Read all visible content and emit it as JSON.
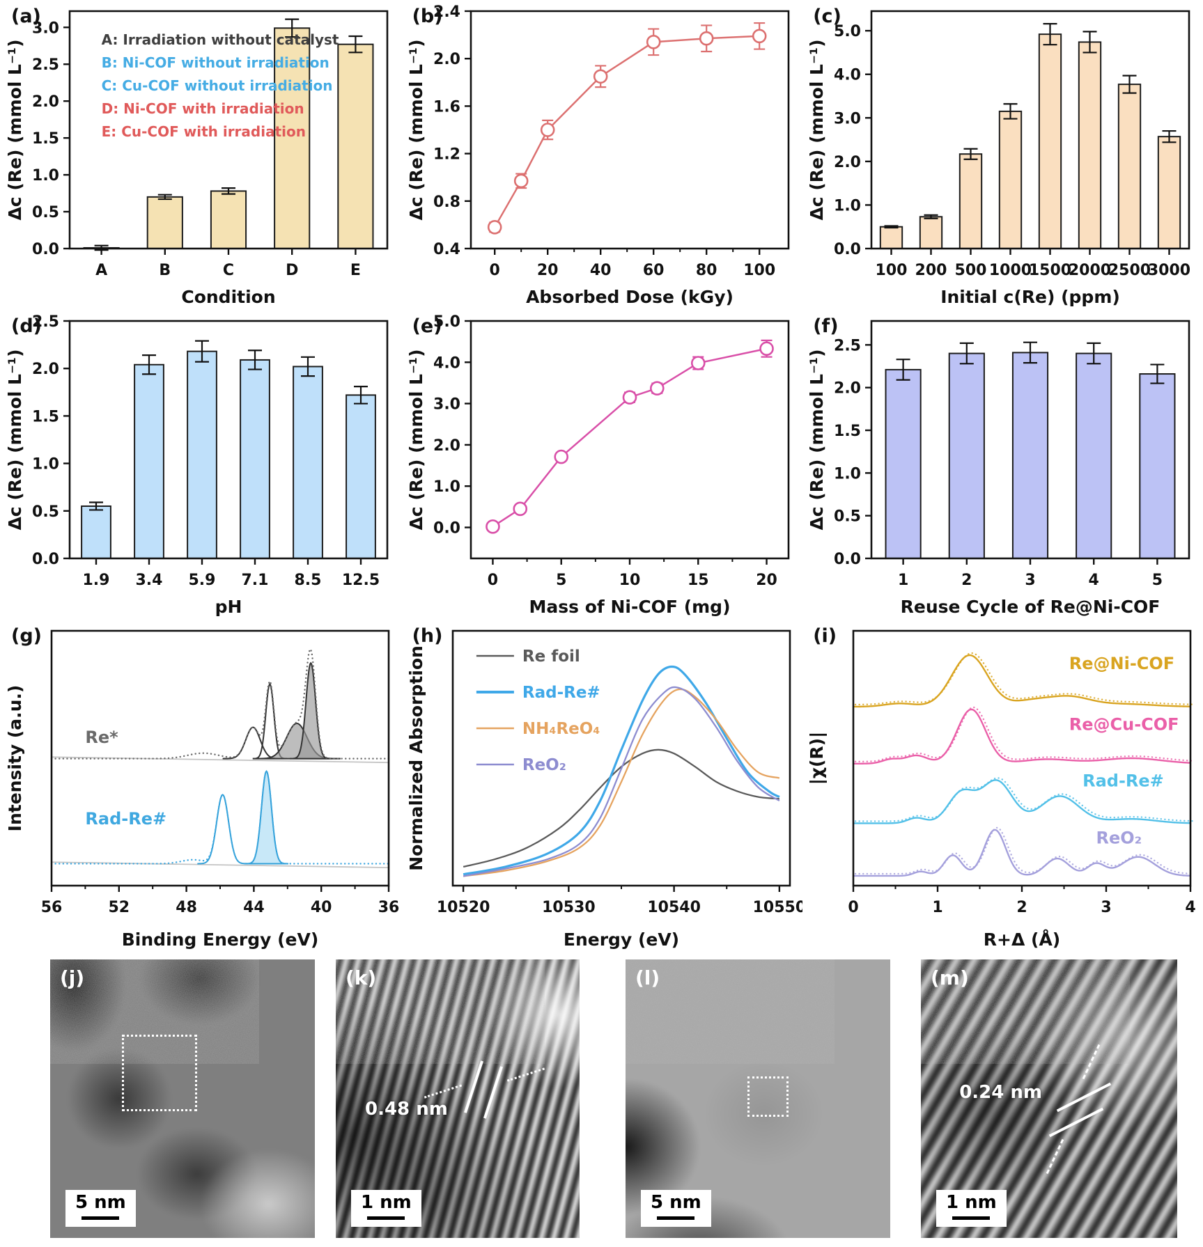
{
  "chart_data": [
    {
      "id": "a",
      "label": "(a)",
      "type": "bar",
      "categories": [
        "A",
        "B",
        "C",
        "D",
        "E"
      ],
      "values": [
        0.01,
        0.7,
        0.78,
        2.99,
        2.77
      ],
      "errors": [
        0.03,
        0.03,
        0.04,
        0.12,
        0.11
      ],
      "bar_color": "#f5e2b3",
      "xlabel": "Condition",
      "ylabel": "Δc (Re) (mmol L⁻¹)",
      "ylim": [
        0,
        3.22
      ],
      "ytick_vals": [
        0,
        0.5,
        1.0,
        1.5,
        2.0,
        2.5,
        3.0
      ],
      "ytick_labels": [
        "0.0",
        "0.5",
        "1.0",
        "1.5",
        "2.0",
        "2.5",
        "3.0"
      ],
      "legend_style": "text",
      "legend": [
        {
          "text": "A: Irradiation without catalyst",
          "color": "#3f3f3f"
        },
        {
          "text": "B: Ni-COF without irradiation",
          "color": "#45ace4"
        },
        {
          "text": "C: Cu-COF without irradiation",
          "color": "#45ace4"
        },
        {
          "text": "D: Ni-COF with irradiation",
          "color": "#e05a5a"
        },
        {
          "text": "E: Cu-COF with irradiation",
          "color": "#e05a5a"
        }
      ]
    },
    {
      "id": "b",
      "label": "(b)",
      "type": "line",
      "x": [
        0,
        10,
        20,
        40,
        60,
        80,
        100
      ],
      "y": [
        0.58,
        0.97,
        1.4,
        1.85,
        2.14,
        2.17,
        2.19
      ],
      "err": [
        0.04,
        0.06,
        0.08,
        0.09,
        0.11,
        0.11,
        0.11
      ],
      "color": "#dc7070",
      "xlabel": "Absorbed Dose (kGy)",
      "ylabel": "Δc (Re) (mmol L⁻¹)",
      "xlim": [
        -9,
        111
      ],
      "ylim": [
        0.4,
        2.4
      ],
      "xticks": [
        0,
        20,
        40,
        60,
        80,
        100
      ],
      "xticks_minor": [
        10,
        30,
        50,
        70,
        90
      ],
      "ytick_vals": [
        0.4,
        0.8,
        1.2,
        1.6,
        2.0,
        2.4
      ],
      "ytick_labels": [
        "0.4",
        "0.8",
        "1.2",
        "1.6",
        "2.0",
        "2.4"
      ]
    },
    {
      "id": "c",
      "label": "(c)",
      "type": "bar",
      "categories": [
        "100",
        "200",
        "500",
        "1000",
        "1500",
        "2000",
        "2500",
        "3000"
      ],
      "values": [
        0.5,
        0.73,
        2.17,
        3.15,
        4.92,
        4.74,
        3.77,
        2.57
      ],
      "errors": [
        0.02,
        0.04,
        0.12,
        0.17,
        0.24,
        0.24,
        0.2,
        0.13
      ],
      "bar_color": "#fadfc0",
      "xlabel": "Initial c(Re) (ppm)",
      "ylabel": "Δc (Re) (mmol L⁻¹)",
      "ylim": [
        0,
        5.45
      ],
      "ytick_vals": [
        0,
        1.0,
        2.0,
        3.0,
        4.0,
        5.0
      ],
      "ytick_labels": [
        "0.0",
        "1.0",
        "2.0",
        "3.0",
        "4.0",
        "5.0"
      ]
    },
    {
      "id": "d",
      "label": "(d)",
      "type": "bar",
      "categories": [
        "1.9",
        "3.4",
        "5.9",
        "7.1",
        "8.5",
        "12.5"
      ],
      "values": [
        0.55,
        2.04,
        2.18,
        2.09,
        2.02,
        1.72
      ],
      "errors": [
        0.04,
        0.1,
        0.11,
        0.1,
        0.1,
        0.09
      ],
      "bar_color": "#bfe0fa",
      "xlabel": "pH",
      "ylabel": "Δc (Re) (mmol L⁻¹)",
      "ylim": [
        0,
        2.5
      ],
      "ytick_vals": [
        0,
        0.5,
        1.0,
        1.5,
        2.0,
        2.5
      ],
      "ytick_labels": [
        "0.0",
        "0.5",
        "1.0",
        "1.5",
        "2.0",
        "2.5"
      ]
    },
    {
      "id": "e",
      "label": "(e)",
      "type": "line",
      "x": [
        0,
        2,
        5,
        10,
        12,
        15,
        20
      ],
      "y": [
        0.02,
        0.45,
        1.71,
        3.15,
        3.37,
        3.98,
        4.33
      ],
      "err": [
        0.08,
        0.08,
        0.08,
        0.12,
        0.12,
        0.15,
        0.2
      ],
      "color": "#d94fa8",
      "xlabel": "Mass of Ni-COF (mg)",
      "ylabel": "Δc (Re) (mmol L⁻¹)",
      "xlim": [
        -1.6,
        21.6
      ],
      "ylim": [
        -0.75,
        5.0
      ],
      "xticks": [
        0,
        5,
        10,
        15,
        20
      ],
      "xticks_minor": [
        2.5,
        7.5,
        12.5,
        17.5
      ],
      "ytick_vals": [
        0,
        1.0,
        2.0,
        3.0,
        4.0,
        5.0
      ],
      "ytick_labels": [
        "0.0",
        "1.0",
        "2.0",
        "3.0",
        "4.0",
        "5.0"
      ]
    },
    {
      "id": "f",
      "label": "(f)",
      "type": "bar",
      "categories": [
        "1",
        "2",
        "3",
        "4",
        "5"
      ],
      "values": [
        2.21,
        2.4,
        2.41,
        2.4,
        2.16
      ],
      "errors": [
        0.12,
        0.12,
        0.12,
        0.12,
        0.11
      ],
      "bar_color": "#bcc2f5",
      "xlabel": "Reuse Cycle of Re@Ni-COF",
      "ylabel": "Δc (Re) (mmol L⁻¹)",
      "ylim": [
        0,
        2.78
      ],
      "ytick_vals": [
        0,
        0.5,
        1.0,
        1.5,
        2.0,
        2.5
      ],
      "ytick_labels": [
        "0.0",
        "0.5",
        "1.0",
        "1.5",
        "2.0",
        "2.5"
      ]
    },
    {
      "id": "g",
      "label": "(g)",
      "type": "peaks",
      "xlabel": "Binding Energy (eV)",
      "ylabel": "Intensity (a.u.)",
      "xlim": [
        56,
        36
      ],
      "ylim": [
        0,
        3.25
      ],
      "xticks": [
        56,
        52,
        48,
        44,
        40,
        36
      ],
      "xtick_labels": [
        "56",
        "52",
        "48",
        "44",
        "40",
        "36"
      ],
      "xticks_minor": [
        54,
        50,
        46,
        42,
        38
      ],
      "ytick_vals": [],
      "ytick_labels": [],
      "baseline": true,
      "envelope": "dotted",
      "show_components": true,
      "series": [
        {
          "name": "Re*",
          "color": "#6a6a6a",
          "comp_color": "#333333",
          "fill_color": "#9a9a9a",
          "offset": 1.62,
          "label_pos": [
            0.1,
            0.56
          ],
          "peaks": [
            [
              47.0,
              1.3,
              0.07,
              0
            ],
            [
              44.05,
              0.6,
              0.4,
              0
            ],
            [
              43.05,
              0.34,
              0.95,
              0
            ],
            [
              41.45,
              0.85,
              0.45,
              1
            ],
            [
              40.62,
              0.4,
              1.22,
              1
            ]
          ]
        },
        {
          "name": "Rad-Re#",
          "color": "#3fa8e0",
          "comp_color": "#2f9fd8",
          "fill_color": "#aadcf5",
          "offset": 0.28,
          "label_pos": [
            0.1,
            0.24
          ],
          "peaks": [
            [
              47.6,
              1.0,
              0.05,
              0
            ],
            [
              45.85,
              0.5,
              0.88,
              0
            ],
            [
              43.25,
              0.42,
              1.18,
              1
            ]
          ]
        }
      ]
    },
    {
      "id": "h",
      "label": "(h)",
      "type": "curves",
      "xlabel": "Energy (eV)",
      "ylabel": "Normalized Absorption",
      "xlim": [
        10519,
        10551
      ],
      "ylim": [
        0,
        1.35
      ],
      "xticks": [
        10520,
        10530,
        10540,
        10550
      ],
      "xticks_minor": [
        10525,
        10535,
        10545
      ],
      "ytick_vals": [],
      "ytick_labels": [],
      "legend_style": "line",
      "series": [
        {
          "name": "Re foil",
          "color": "#5a5a5a",
          "x": [
            10520,
            10523,
            10526,
            10529,
            10531,
            10533,
            10535,
            10537,
            10538.5,
            10540,
            10542,
            10544,
            10546,
            10548,
            10550
          ],
          "y": [
            0.1,
            0.14,
            0.2,
            0.3,
            0.4,
            0.52,
            0.63,
            0.7,
            0.72,
            0.7,
            0.63,
            0.55,
            0.5,
            0.47,
            0.46
          ]
        },
        {
          "name": "Rad-Re#",
          "color": "#3fa8e8",
          "x": [
            10520,
            10524,
            10528,
            10531,
            10533,
            10535,
            10537,
            10538.5,
            10539.8,
            10541,
            10543,
            10545,
            10547,
            10549,
            10550
          ],
          "y": [
            0.06,
            0.1,
            0.17,
            0.28,
            0.45,
            0.72,
            0.98,
            1.12,
            1.16,
            1.12,
            0.97,
            0.78,
            0.6,
            0.5,
            0.47
          ]
        },
        {
          "name": "NH₄ReO₄",
          "color": "#e5a35f",
          "x": [
            10520,
            10524,
            10528,
            10531,
            10533,
            10535,
            10537,
            10539,
            10540.5,
            10542,
            10544,
            10546,
            10548,
            10550
          ],
          "y": [
            0.05,
            0.08,
            0.13,
            0.2,
            0.32,
            0.55,
            0.8,
            0.98,
            1.04,
            1.0,
            0.88,
            0.72,
            0.6,
            0.57
          ]
        },
        {
          "name": "ReO₂",
          "color": "#8d8cd0",
          "x": [
            10520,
            10524,
            10528,
            10531,
            10533,
            10535,
            10537,
            10539,
            10540.3,
            10542,
            10544,
            10546,
            10548,
            10550
          ],
          "y": [
            0.05,
            0.09,
            0.14,
            0.22,
            0.36,
            0.62,
            0.88,
            1.02,
            1.05,
            0.99,
            0.84,
            0.66,
            0.52,
            0.45
          ]
        }
      ]
    },
    {
      "id": "i",
      "label": "(i)",
      "type": "peaks",
      "xlabel": "R+Δ (Å)",
      "ylabel": "|χ(R)|",
      "xlim": [
        0,
        4
      ],
      "ylim": [
        0,
        4.7
      ],
      "xticks": [
        0,
        1,
        2,
        3,
        4
      ],
      "xtick_labels": [
        "0",
        "1",
        "2",
        "3",
        "4"
      ],
      "xticks_minor": [
        0.5,
        1.5,
        2.5,
        3.5
      ],
      "ytick_vals": [],
      "ytick_labels": [],
      "baseline": false,
      "envelope": "solid",
      "show_components": false,
      "series": [
        {
          "name": "Re@Ni-COF",
          "color": "#d9a420",
          "offset": 3.3,
          "label_pos": [
            0.64,
            0.85
          ],
          "peaks": [
            [
              0.55,
              0.25,
              0.06,
              0
            ],
            [
              1.38,
              0.3,
              0.95,
              0
            ],
            [
              2.1,
              0.3,
              0.1,
              0
            ],
            [
              2.55,
              0.35,
              0.18,
              0
            ],
            [
              3.2,
              0.5,
              0.05,
              0
            ]
          ]
        },
        {
          "name": "Re@Cu-COF",
          "color": "#ea5fa8",
          "offset": 2.25,
          "label_pos": [
            0.64,
            0.61
          ],
          "peaks": [
            [
              0.45,
              0.15,
              0.08,
              0
            ],
            [
              0.75,
              0.18,
              0.15,
              0
            ],
            [
              1.4,
              0.24,
              1.0,
              0
            ],
            [
              2.3,
              0.4,
              0.08,
              0
            ],
            [
              3.3,
              0.5,
              0.1,
              0
            ]
          ]
        },
        {
          "name": "Rad-Re#",
          "color": "#52c0e8",
          "offset": 1.15,
          "label_pos": [
            0.68,
            0.39
          ],
          "peaks": [
            [
              0.75,
              0.15,
              0.1,
              0
            ],
            [
              1.28,
              0.22,
              0.55,
              0
            ],
            [
              1.7,
              0.26,
              0.78,
              0
            ],
            [
              2.45,
              0.32,
              0.5,
              0
            ],
            [
              3.3,
              0.4,
              0.08,
              0
            ]
          ]
        },
        {
          "name": "ReO₂",
          "color": "#a4a0dc",
          "offset": 0.18,
          "label_pos": [
            0.72,
            0.165
          ],
          "peaks": [
            [
              0.8,
              0.12,
              0.08,
              0
            ],
            [
              1.18,
              0.15,
              0.38,
              0
            ],
            [
              1.68,
              0.18,
              0.85,
              0
            ],
            [
              2.42,
              0.2,
              0.32,
              0
            ],
            [
              2.88,
              0.15,
              0.22,
              0
            ],
            [
              3.38,
              0.28,
              0.35,
              0
            ]
          ]
        }
      ]
    }
  ],
  "tem_panels": [
    {
      "id": "j",
      "label": "(j)",
      "scale_text": "5 nm",
      "annotation": ""
    },
    {
      "id": "k",
      "label": "(k)",
      "scale_text": "1 nm",
      "annotation": "0.48 nm"
    },
    {
      "id": "l",
      "label": "(l)",
      "scale_text": "5 nm",
      "annotation": ""
    },
    {
      "id": "m",
      "label": "(m)",
      "scale_text": "1 nm",
      "annotation": "0.24 nm"
    }
  ]
}
